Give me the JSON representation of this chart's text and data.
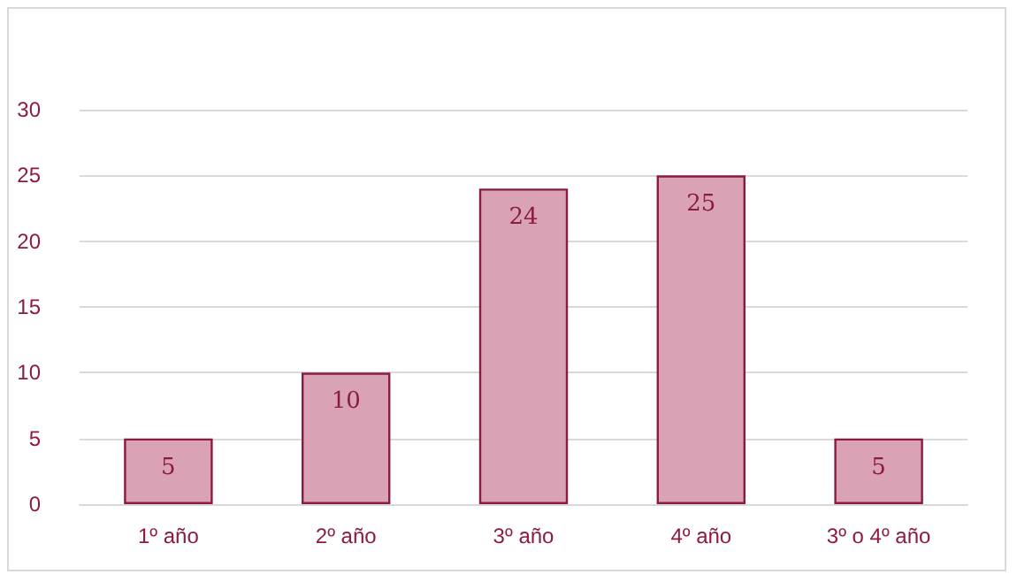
{
  "chart_data": {
    "type": "bar",
    "categories": [
      "1º año",
      "2º año",
      "3º año",
      "4º año",
      "3º o 4º año"
    ],
    "values": [
      5,
      10,
      24,
      25,
      5
    ],
    "color": "#d9a3b5",
    "ylim": [
      0,
      30
    ],
    "yticks": [
      0,
      5,
      10,
      15,
      20,
      25,
      30
    ],
    "grid": "y",
    "data_labels": true
  }
}
